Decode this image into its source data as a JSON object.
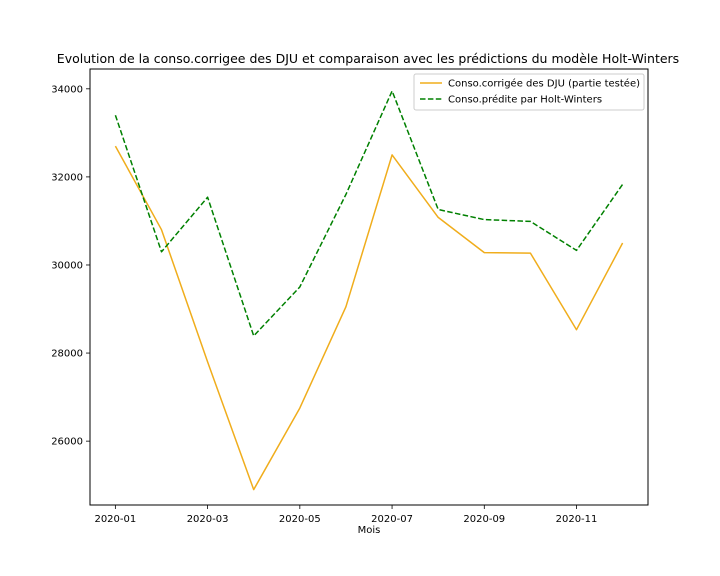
{
  "chart_data": {
    "type": "line",
    "title": "Evolution de la conso.corrigee des DJU et comparaison avec les prédictions du modèle Holt-Winters",
    "xlabel": "Mois",
    "ylabel": "",
    "x": [
      "2020-01",
      "2020-02",
      "2020-03",
      "2020-04",
      "2020-05",
      "2020-06",
      "2020-07",
      "2020-08",
      "2020-09",
      "2020-10",
      "2020-11",
      "2020-12"
    ],
    "x_tick_labels": [
      "2020-01",
      "2020-03",
      "2020-05",
      "2020-07",
      "2020-09",
      "2020-11"
    ],
    "y_tick_values": [
      26000,
      28000,
      30000,
      32000,
      34000
    ],
    "y_tick_labels": [
      "26000",
      "28000",
      "30000",
      "32000",
      "34000"
    ],
    "ylim": [
      24550,
      34450
    ],
    "grid": false,
    "legend_position": "top-right",
    "series": [
      {
        "name": "Conso.corrigée des DJU (partie testée)",
        "color": "#f0ad1c",
        "style": "solid",
        "values": [
          32700,
          30800,
          27800,
          24900,
          26750,
          29050,
          32500,
          31080,
          30280,
          30270,
          28530,
          30500
        ]
      },
      {
        "name": "Conso.prédite par Holt-Winters",
        "color": "#008000",
        "style": "dashed",
        "values": [
          33400,
          30300,
          31540,
          28390,
          29500,
          31600,
          33950,
          31260,
          31030,
          30990,
          30330,
          31830
        ]
      }
    ]
  }
}
